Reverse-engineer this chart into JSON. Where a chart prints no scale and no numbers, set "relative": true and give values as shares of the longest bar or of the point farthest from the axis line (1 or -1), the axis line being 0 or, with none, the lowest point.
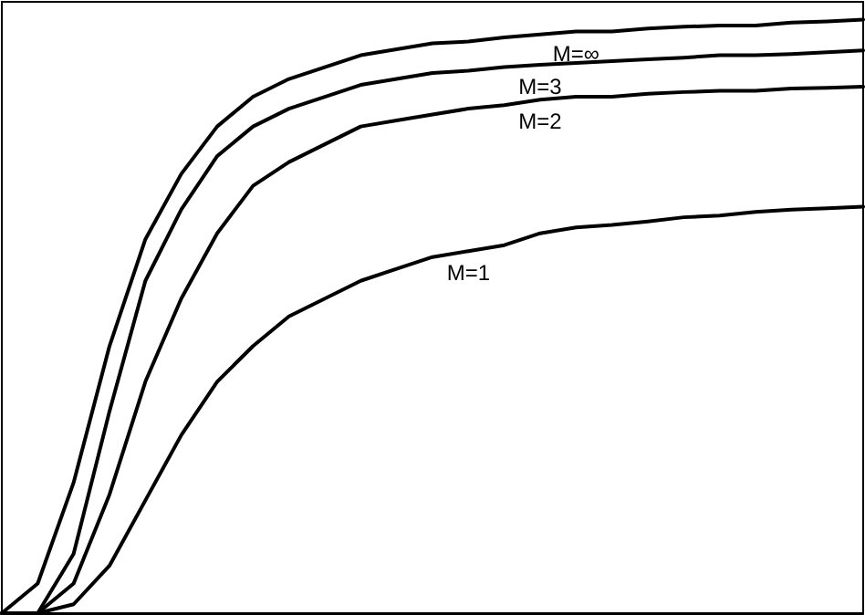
{
  "chart_data": {
    "type": "line",
    "relative": true,
    "categories": [
      null,
      null,
      null,
      null,
      null,
      null,
      null,
      null,
      null,
      null,
      null,
      null,
      null,
      null,
      null,
      null,
      null,
      null,
      null,
      null,
      null,
      null,
      null,
      null,
      null
    ],
    "legend": false,
    "grid": false,
    "marker": "none",
    "line_style": "solid",
    "tick_labels": false,
    "series": [
      {
        "name": "M=∞",
        "color": "#000000",
        "values": [
          0,
          0.05,
          0.22,
          0.45,
          0.63,
          0.74,
          0.82,
          0.87,
          0.9,
          0.92,
          0.94,
          0.95,
          0.96,
          0.963,
          0.97,
          0.975,
          0.98,
          0.98,
          0.985,
          0.988,
          0.99,
          0.99,
          0.995,
          0.997,
          1
        ]
      },
      {
        "name": "M=3",
        "color": "#000000",
        "values": [
          0,
          0,
          0.1,
          0.34,
          0.56,
          0.68,
          0.77,
          0.82,
          0.85,
          0.87,
          0.89,
          0.9,
          0.91,
          0.914,
          0.92,
          0.924,
          0.927,
          0.93,
          0.933,
          0.936,
          0.94,
          0.94,
          0.942,
          0.945,
          0.948
        ]
      },
      {
        "name": "M=2",
        "color": "#000000",
        "values": [
          0,
          0,
          0.05,
          0.2,
          0.39,
          0.53,
          0.64,
          0.72,
          0.76,
          0.79,
          0.82,
          0.83,
          0.84,
          0.85,
          0.856,
          0.865,
          0.87,
          0.87,
          0.875,
          0.878,
          0.88,
          0.88,
          0.884,
          0.885,
          0.887
        ]
      },
      {
        "name": "M=1",
        "color": "#000000",
        "values": [
          0,
          0,
          0.015,
          0.08,
          0.19,
          0.3,
          0.39,
          0.45,
          0.5,
          0.53,
          0.56,
          0.58,
          0.6,
          0.61,
          0.62,
          0.64,
          0.65,
          0.654,
          0.66,
          0.667,
          0.67,
          0.676,
          0.68,
          0.682,
          0.685
        ]
      }
    ]
  }
}
